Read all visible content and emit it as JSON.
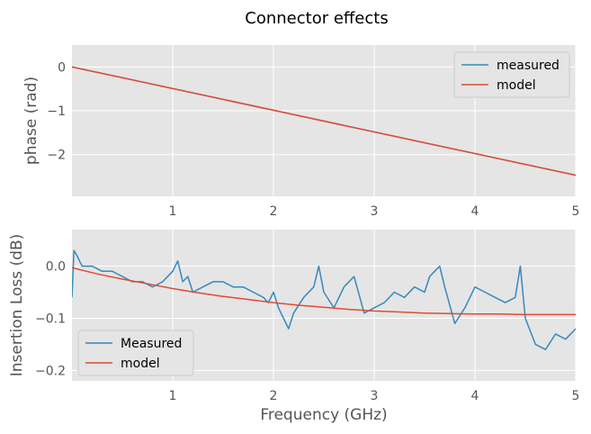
{
  "figure": {
    "title": "Connector effects",
    "xlabel": "Frequency (GHz)"
  },
  "chart_data": [
    {
      "type": "line",
      "ylabel": "phase (rad)",
      "xlim": [
        0.0,
        5.0
      ],
      "ylim": [
        -2.95,
        0.5
      ],
      "x_ticks": [
        1,
        2,
        3,
        4,
        5
      ],
      "y_ticks": [
        0,
        -1,
        -2
      ],
      "x_tick_labels": [
        "1",
        "2",
        "3",
        "4",
        "5"
      ],
      "y_tick_labels": [
        "0",
        "−1",
        "−2"
      ],
      "grid": true,
      "legend_position": "top-right",
      "series": [
        {
          "name": "measured",
          "color": "#348ABD",
          "x": [
            0.0,
            5.0
          ],
          "y": [
            0.0,
            -2.47
          ]
        },
        {
          "name": "model",
          "color": "#E24A33",
          "x": [
            0.0,
            5.0
          ],
          "y": [
            0.0,
            -2.47
          ]
        }
      ]
    },
    {
      "type": "line",
      "ylabel": "Insertion Loss (dB)",
      "xlim": [
        0.0,
        5.0
      ],
      "ylim": [
        -0.22,
        0.07
      ],
      "x_ticks": [
        1,
        2,
        3,
        4,
        5
      ],
      "y_ticks": [
        0.0,
        -0.1,
        -0.2
      ],
      "x_tick_labels": [
        "1",
        "2",
        "3",
        "4",
        "5"
      ],
      "y_tick_labels": [
        "0.0",
        "−0.1",
        "−0.2"
      ],
      "grid": true,
      "legend_position": "bottom-left",
      "series": [
        {
          "name": "Measured",
          "color": "#348ABD",
          "x": [
            0.0,
            0.02,
            0.05,
            0.1,
            0.2,
            0.3,
            0.4,
            0.5,
            0.6,
            0.7,
            0.8,
            0.9,
            1.0,
            1.05,
            1.1,
            1.15,
            1.2,
            1.3,
            1.4,
            1.5,
            1.6,
            1.7,
            1.8,
            1.9,
            1.95,
            2.0,
            2.05,
            2.1,
            2.15,
            2.2,
            2.3,
            2.4,
            2.45,
            2.5,
            2.6,
            2.7,
            2.8,
            2.9,
            3.0,
            3.1,
            3.2,
            3.3,
            3.4,
            3.5,
            3.55,
            3.6,
            3.65,
            3.7,
            3.8,
            3.9,
            4.0,
            4.1,
            4.2,
            4.3,
            4.4,
            4.45,
            4.5,
            4.6,
            4.7,
            4.8,
            4.9,
            5.0
          ],
          "y": [
            -0.06,
            0.03,
            0.02,
            0.0,
            0.0,
            -0.01,
            -0.01,
            -0.02,
            -0.03,
            -0.03,
            -0.04,
            -0.03,
            -0.01,
            0.01,
            -0.03,
            -0.02,
            -0.05,
            -0.04,
            -0.03,
            -0.03,
            -0.04,
            -0.04,
            -0.05,
            -0.06,
            -0.07,
            -0.05,
            -0.08,
            -0.1,
            -0.12,
            -0.09,
            -0.06,
            -0.04,
            0.0,
            -0.05,
            -0.08,
            -0.04,
            -0.02,
            -0.09,
            -0.08,
            -0.07,
            -0.05,
            -0.06,
            -0.04,
            -0.05,
            -0.02,
            -0.01,
            0.0,
            -0.04,
            -0.11,
            -0.08,
            -0.04,
            -0.05,
            -0.06,
            -0.07,
            -0.06,
            0.0,
            -0.1,
            -0.15,
            -0.16,
            -0.13,
            -0.14,
            -0.12
          ]
        },
        {
          "name": "model",
          "color": "#E24A33",
          "x": [
            0.0,
            0.25,
            0.5,
            0.75,
            1.0,
            1.25,
            1.5,
            1.75,
            2.0,
            2.25,
            2.5,
            2.75,
            3.0,
            3.25,
            3.5,
            3.75,
            4.0,
            4.25,
            4.5,
            4.75,
            5.0
          ],
          "y": [
            -0.003,
            -0.015,
            -0.025,
            -0.034,
            -0.043,
            -0.051,
            -0.058,
            -0.064,
            -0.07,
            -0.075,
            -0.079,
            -0.083,
            -0.086,
            -0.088,
            -0.09,
            -0.091,
            -0.092,
            -0.092,
            -0.093,
            -0.093,
            -0.093
          ]
        }
      ]
    }
  ]
}
